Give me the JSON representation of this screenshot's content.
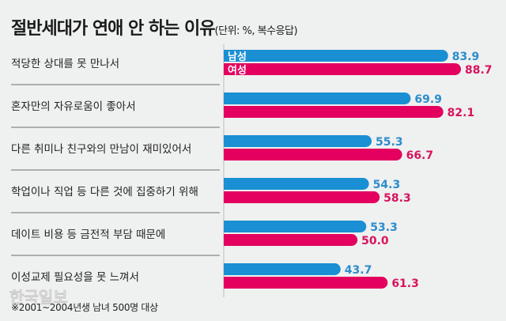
{
  "chart_data": {
    "type": "bar",
    "orientation": "horizontal",
    "title": "절반세대가 연애 안 하는 이유",
    "subtitle": "(단위: %, 복수응답)",
    "categories": [
      "적당한 상대를 못 만나서",
      "혼자만의 자유로움이 좋아서",
      "다른 취미나 친구와의 만남이 재미있어서",
      "학업이나 직업 등 다른 것에 집중하기 위해",
      "데이트 비용 등 금전적 부담 때문에",
      "이성교제 필요성을 못 느껴서"
    ],
    "series": [
      {
        "name": "남성",
        "color": "#1a8fd3",
        "label_color": "#2a8ccc",
        "values": [
          83.9,
          69.9,
          55.3,
          54.3,
          53.3,
          43.7
        ]
      },
      {
        "name": "여성",
        "color": "#e3005f",
        "label_color": "#d6145e",
        "values": [
          88.7,
          82.1,
          66.7,
          58.3,
          50.0,
          61.3
        ]
      }
    ],
    "legend": "inside-first-bars",
    "grid": false
  },
  "footnote": "※2001~2004년생 남녀 500명 대상",
  "logo": "한국일보"
}
